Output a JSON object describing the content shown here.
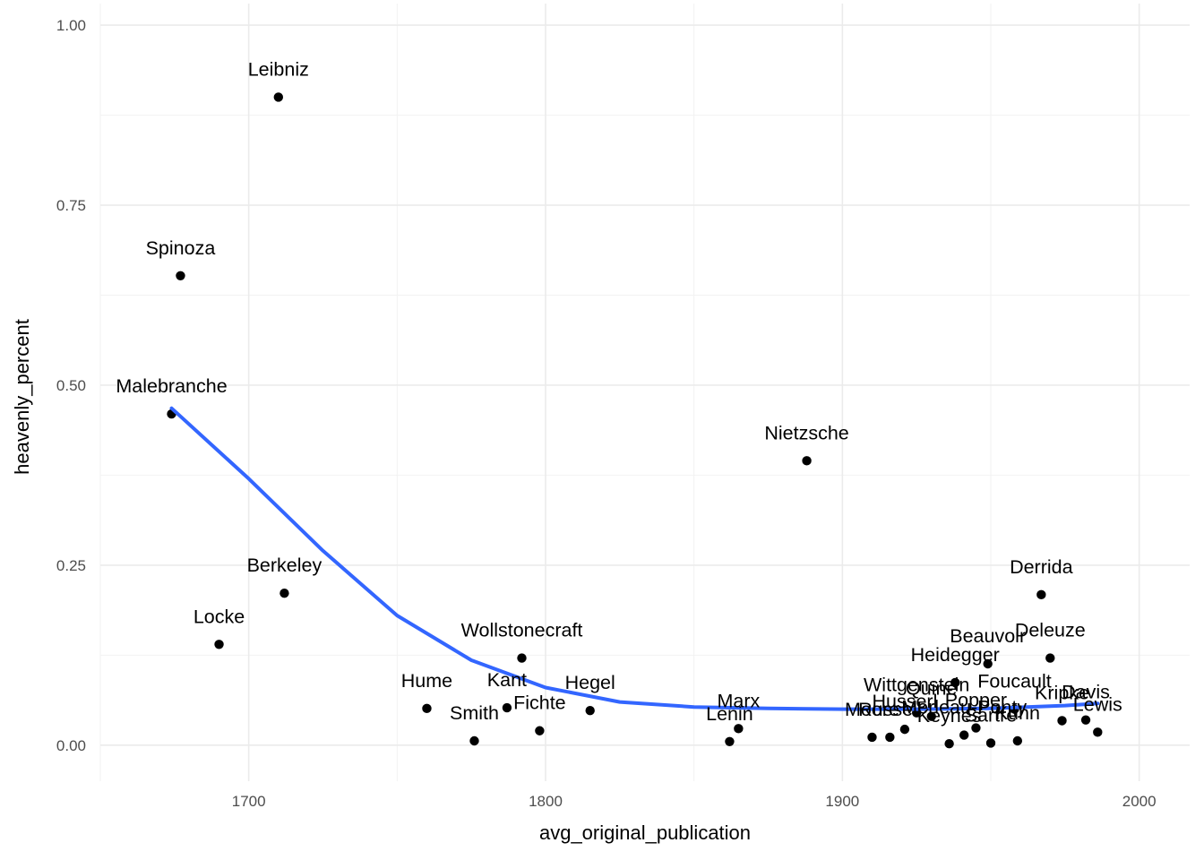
{
  "chart_data": {
    "type": "scatter",
    "title": "",
    "xlabel": "avg_original_publication",
    "ylabel": "heavenly_percent",
    "xlim": [
      1650,
      2017
    ],
    "ylim": [
      -0.05,
      1.03
    ],
    "x_ticks": [
      1700,
      1800,
      1900,
      2000
    ],
    "x_tick_labels": [
      "1700",
      "1800",
      "1900",
      "2000"
    ],
    "y_ticks": [
      0,
      0.25,
      0.5,
      0.75,
      1
    ],
    "y_tick_labels": [
      "0.00",
      "0.25",
      "0.50",
      "0.75",
      "1.00"
    ],
    "grid": true,
    "legend": "none",
    "point_color": "#000000",
    "trend_color": "#3366ff",
    "points": [
      {
        "label": "Leibniz",
        "x": 1710,
        "y": 0.9
      },
      {
        "label": "Spinoza",
        "x": 1677,
        "y": 0.652
      },
      {
        "label": "Malebranche",
        "x": 1674,
        "y": 0.46
      },
      {
        "label": "Berkeley",
        "x": 1712,
        "y": 0.211
      },
      {
        "label": "Locke",
        "x": 1690,
        "y": 0.14
      },
      {
        "label": "Hume",
        "x": 1760,
        "y": 0.051
      },
      {
        "label": "Smith",
        "x": 1776,
        "y": 0.006
      },
      {
        "label": "Kant",
        "x": 1787,
        "y": 0.052
      },
      {
        "label": "Wollstonecraft",
        "x": 1792,
        "y": 0.121
      },
      {
        "label": "Fichte",
        "x": 1798,
        "y": 0.02
      },
      {
        "label": "Hegel",
        "x": 1815,
        "y": 0.048
      },
      {
        "label": "Lenin",
        "x": 1862,
        "y": 0.005
      },
      {
        "label": "Marx",
        "x": 1865,
        "y": 0.023
      },
      {
        "label": "Nietzsche",
        "x": 1888,
        "y": 0.395
      },
      {
        "label": "Moore",
        "x": 1910,
        "y": 0.011
      },
      {
        "label": "Russell",
        "x": 1916,
        "y": 0.011
      },
      {
        "label": "Husserl",
        "x": 1921,
        "y": 0.022
      },
      {
        "label": "Wittgenstein",
        "x": 1925,
        "y": 0.045
      },
      {
        "label": "Quine",
        "x": 1930,
        "y": 0.04
      },
      {
        "label": "Keynes",
        "x": 1936,
        "y": 0.002
      },
      {
        "label": "Heidegger",
        "x": 1938,
        "y": 0.087
      },
      {
        "label": "Merleau-Ponty",
        "x": 1941,
        "y": 0.014
      },
      {
        "label": "Popper",
        "x": 1945,
        "y": 0.024
      },
      {
        "label": "Beauvoir",
        "x": 1949,
        "y": 0.113
      },
      {
        "label": "Sartre",
        "x": 1950,
        "y": 0.003
      },
      {
        "label": "Foucault",
        "x": 1958,
        "y": 0.05
      },
      {
        "label": "Kuhn",
        "x": 1959,
        "y": 0.006
      },
      {
        "label": "Derrida",
        "x": 1967,
        "y": 0.209
      },
      {
        "label": "Deleuze",
        "x": 1970,
        "y": 0.121
      },
      {
        "label": "Kripke",
        "x": 1974,
        "y": 0.034
      },
      {
        "label": "Davis",
        "x": 1982,
        "y": 0.035
      },
      {
        "label": "Lewis",
        "x": 1986,
        "y": 0.018
      }
    ],
    "trend": {
      "x": [
        1674,
        1700,
        1725,
        1750,
        1775,
        1800,
        1825,
        1850,
        1875,
        1900,
        1925,
        1950,
        1975,
        1986
      ],
      "y": [
        0.468,
        0.37,
        0.27,
        0.18,
        0.118,
        0.08,
        0.06,
        0.053,
        0.051,
        0.05,
        0.05,
        0.051,
        0.055,
        0.058
      ]
    }
  }
}
